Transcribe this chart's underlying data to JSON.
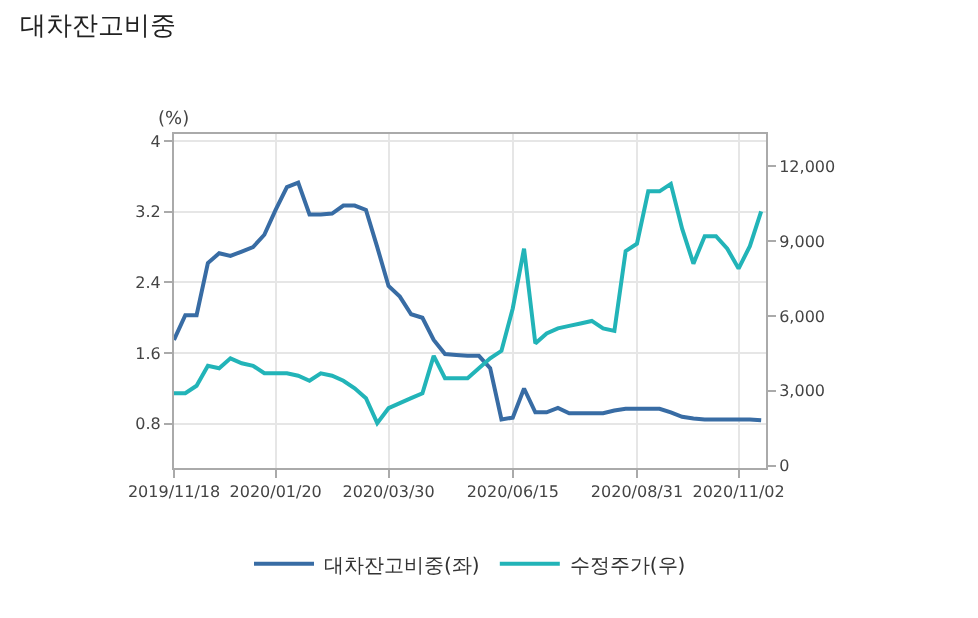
{
  "chart_data": {
    "type": "line",
    "title": "대차잔고비중",
    "ylabel": "(%)",
    "x": [
      "2019-11-18",
      "2019-11-25",
      "2019-12-02",
      "2019-12-09",
      "2019-12-16",
      "2019-12-23",
      "2019-12-30",
      "2020-01-06",
      "2020-01-13",
      "2020-01-20",
      "2020-01-27",
      "2020-02-03",
      "2020-02-10",
      "2020-02-17",
      "2020-02-24",
      "2020-03-02",
      "2020-03-09",
      "2020-03-16",
      "2020-03-23",
      "2020-03-30",
      "2020-04-06",
      "2020-04-13",
      "2020-04-20",
      "2020-04-27",
      "2020-05-04",
      "2020-05-11",
      "2020-05-18",
      "2020-05-25",
      "2020-06-01",
      "2020-06-08",
      "2020-06-15",
      "2020-06-22",
      "2020-06-29",
      "2020-07-06",
      "2020-07-13",
      "2020-07-20",
      "2020-07-27",
      "2020-08-03",
      "2020-08-10",
      "2020-08-17",
      "2020-08-24",
      "2020-08-31",
      "2020-09-07",
      "2020-09-14",
      "2020-09-21",
      "2020-09-28",
      "2020-10-05",
      "2020-10-12",
      "2020-10-19",
      "2020-10-26",
      "2020-11-02",
      "2020-11-09",
      "2020-11-16"
    ],
    "series": [
      {
        "name": "대차잔고비중(좌)",
        "color": "#386ca4",
        "values": [
          1.75,
          2.03,
          2.03,
          2.62,
          2.73,
          2.7,
          2.75,
          2.8,
          2.94,
          3.22,
          3.48,
          3.53,
          3.17,
          3.17,
          3.18,
          3.27,
          3.27,
          3.22,
          2.8,
          2.36,
          2.24,
          2.04,
          2.0,
          1.75,
          1.59,
          1.58,
          1.57,
          1.57,
          1.43,
          0.85,
          0.87,
          1.2,
          0.93,
          0.93,
          0.98,
          0.92,
          0.92,
          0.92,
          0.92,
          0.95,
          0.97,
          0.97,
          0.97,
          0.97,
          0.93,
          0.88,
          0.86,
          0.85,
          0.85,
          0.85,
          0.85,
          0.85,
          0.84
        ]
      },
      {
        "name": "수정주가(우)",
        "color": "#22b4b8",
        "axis": "y2",
        "values": [
          2900,
          2900,
          3200,
          4000,
          3900,
          4300,
          4100,
          4000,
          3700,
          3700,
          3700,
          3600,
          3400,
          3700,
          3600,
          3400,
          3100,
          2700,
          1700,
          2300,
          2500,
          2700,
          2900,
          4400,
          3500,
          3500,
          3500,
          3900,
          4300,
          4600,
          6300,
          8700,
          4900,
          5300,
          5500,
          5600,
          5700,
          5800,
          5500,
          5400,
          8600,
          8900,
          11000,
          11000,
          11300,
          9500,
          8100,
          9200,
          9200,
          8700,
          7900,
          8800,
          10200
        ]
      }
    ],
    "xlim": [
      "2019-11-18",
      "2020-11-19"
    ],
    "xticks": [
      {
        "value": "2019-11-18",
        "label": "2019/11/18"
      },
      {
        "value": "2020-01-20",
        "label": "2020/01/20"
      },
      {
        "value": "2020-03-30",
        "label": "2020/03/30"
      },
      {
        "value": "2020-06-15",
        "label": "2020/06/15"
      },
      {
        "value": "2020-08-31",
        "label": "2020/08/31"
      },
      {
        "value": "2020-11-02",
        "label": "2020/11/02"
      }
    ],
    "ylim": [
      0.3,
      4.08
    ],
    "yticks": [
      0.8,
      1.6,
      2.4,
      3.2,
      4
    ],
    "y2lim": [
      -100,
      13300
    ],
    "y2ticks": [
      0,
      {
        "value": 3000,
        "label": "3,000"
      },
      {
        "value": 6000,
        "label": "6,000"
      },
      {
        "value": 9000,
        "label": "9,000"
      },
      {
        "value": 12000,
        "label": "12,000"
      }
    ],
    "grid": true,
    "legend": "bottom",
    "marker": "none",
    "line_style": "solid"
  }
}
